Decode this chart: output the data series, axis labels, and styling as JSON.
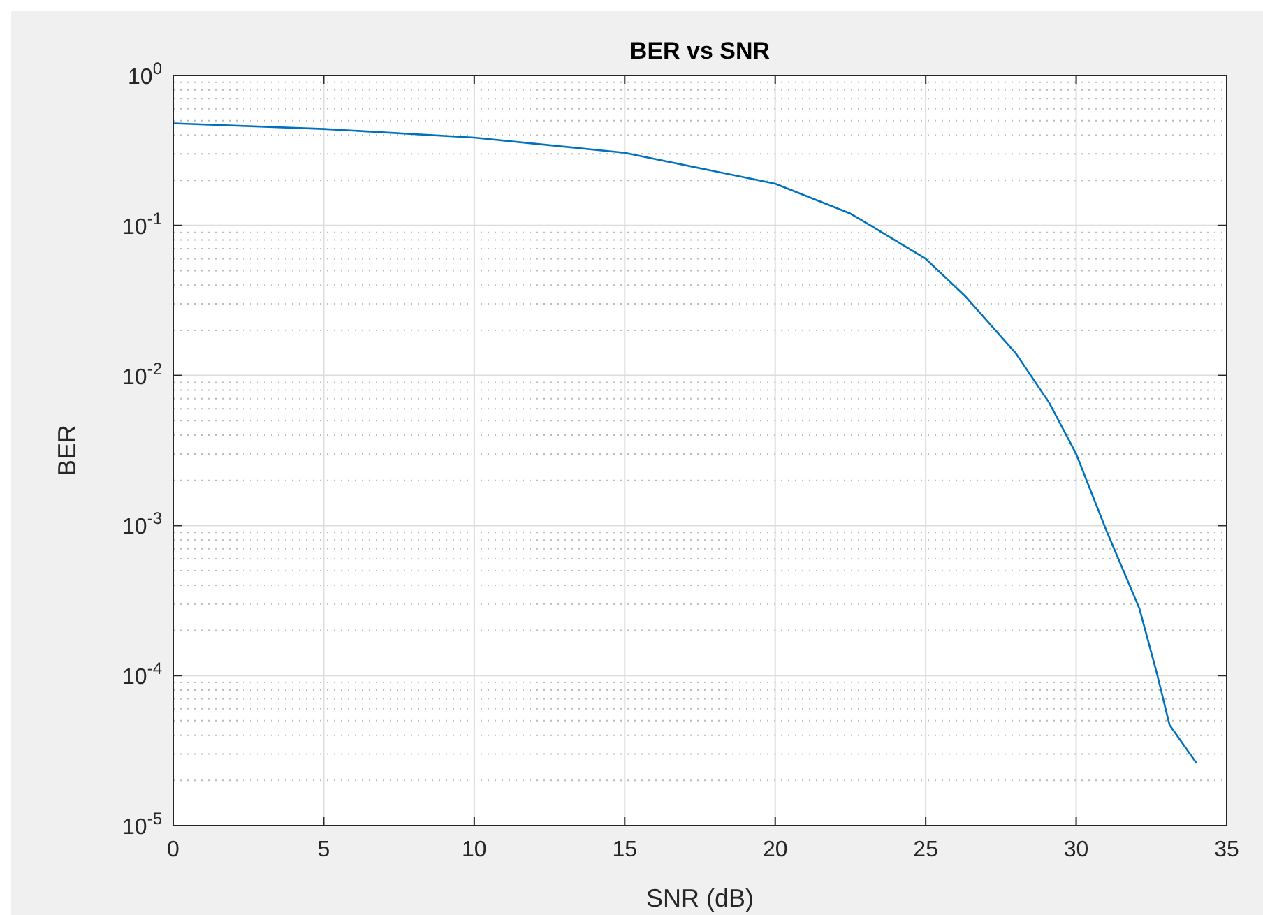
{
  "chart_data": {
    "type": "line",
    "title": "BER vs SNR",
    "xlabel": "SNR (dB)",
    "ylabel": "BER",
    "log": "y",
    "grid": true,
    "xlim": [
      0,
      35
    ],
    "xticks": [
      0,
      5,
      10,
      15,
      20,
      25,
      30,
      35
    ],
    "ylim": [
      1e-05,
      1
    ],
    "yticks": [
      {
        "value": 1e-05,
        "label": "10$^{-5}$"
      },
      {
        "value": 0.0001,
        "label": "10$^{-4}$"
      },
      {
        "value": 0.001,
        "label": "10$^{-3}$"
      },
      {
        "value": 0.01,
        "label": "10$^{-2}$"
      },
      {
        "value": 0.1,
        "label": "10$^{-1}$"
      },
      {
        "value": 1,
        "label": "10$^{0}$"
      }
    ],
    "series": [
      {
        "color": "#0072bd",
        "x": [
          0,
          5,
          10,
          15,
          20,
          22.5,
          23.2,
          25,
          26.3,
          28,
          29.1,
          30,
          31,
          32.1,
          32.7,
          33.1,
          34
        ],
        "values": [
          0.48,
          0.44,
          0.385,
          0.305,
          0.19,
          0.12,
          0.099,
          0.06,
          0.034,
          0.014,
          0.0066,
          0.003,
          0.00093,
          0.00028,
          0.0001,
          4.7e-05,
          2.6e-05
        ]
      }
    ]
  }
}
